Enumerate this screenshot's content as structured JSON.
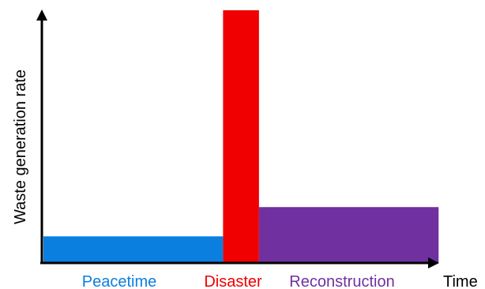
{
  "chart_data": {
    "type": "bar",
    "title": "",
    "xlabel": "Time",
    "ylabel": "Waste generation rate",
    "grid": false,
    "legend": "none",
    "series": [
      {
        "label": "Peacetime",
        "start": 0,
        "end": 5,
        "value": 1.0,
        "color": "#0B7FE0"
      },
      {
        "label": "Disaster",
        "start": 5,
        "end": 6,
        "value": 9.5,
        "color": "#F00000"
      },
      {
        "label": "Reconstruction",
        "start": 6,
        "end": 11,
        "value": 2.1,
        "color": "#7030A0"
      }
    ],
    "xlim": [
      0,
      11.5
    ],
    "ylim": [
      0,
      9.5
    ]
  }
}
